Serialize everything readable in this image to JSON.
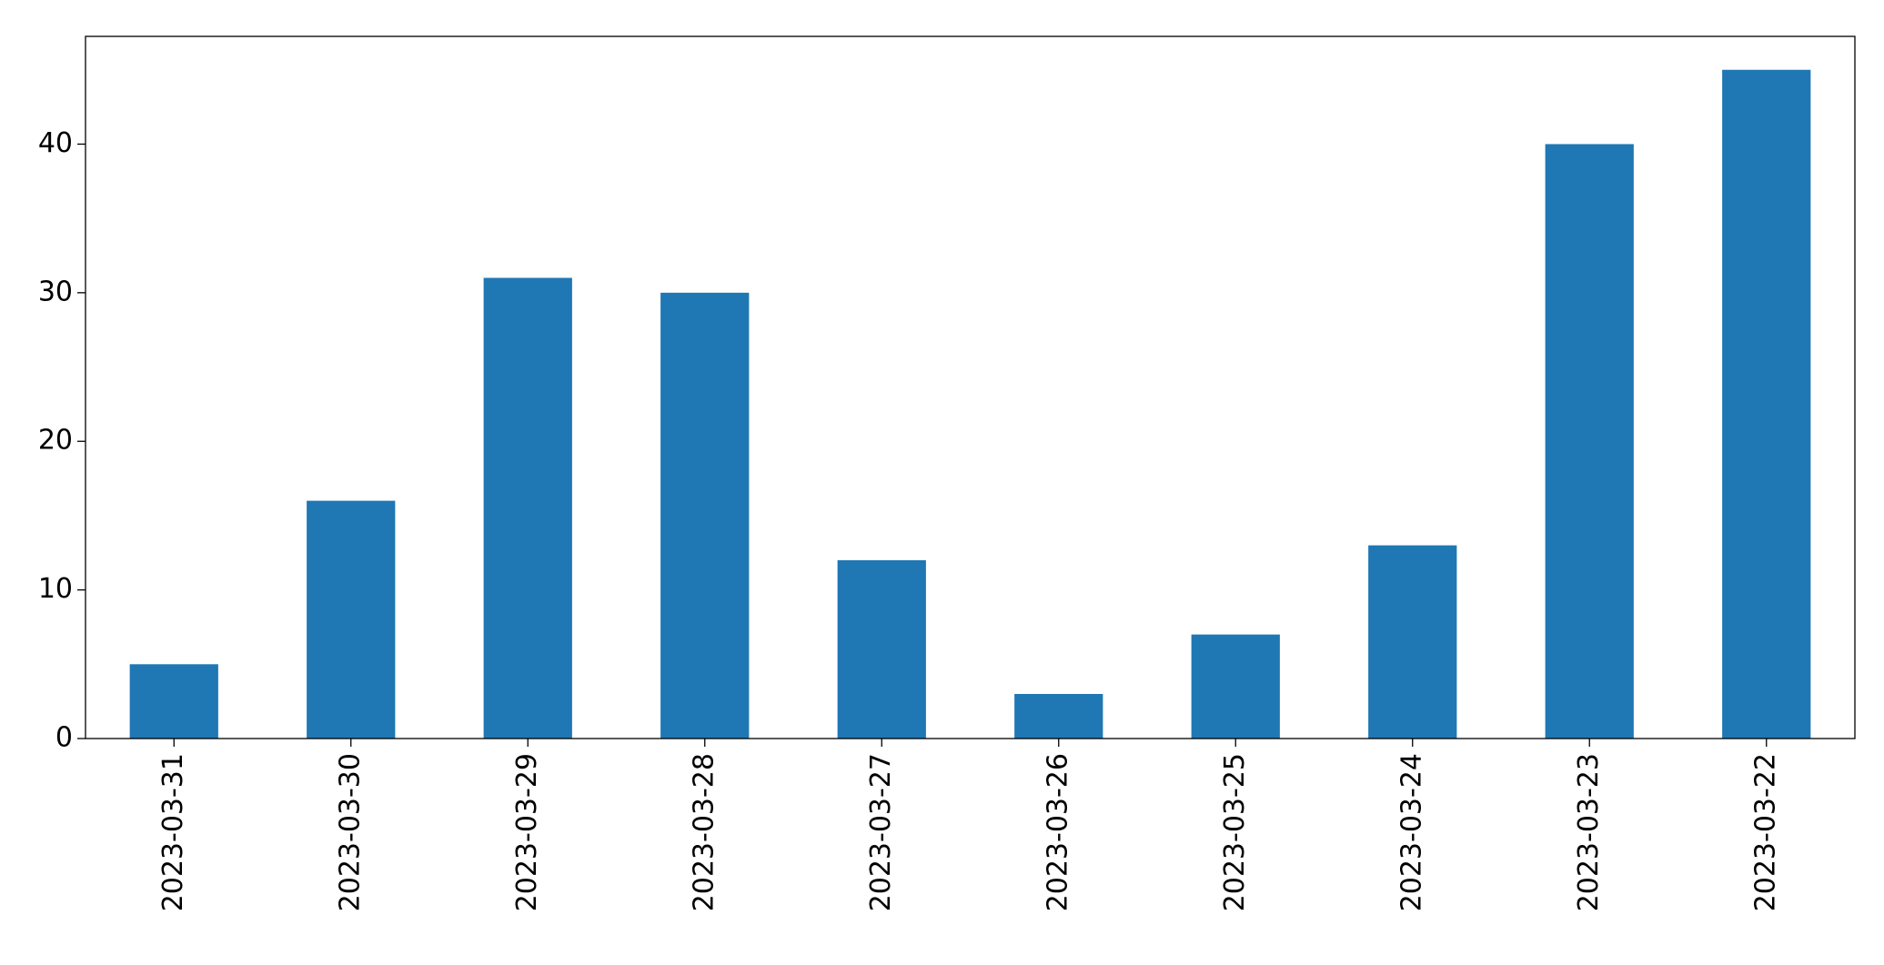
{
  "chart_data": {
    "type": "bar",
    "categories": [
      "2023-03-31",
      "2023-03-30",
      "2023-03-29",
      "2023-03-28",
      "2023-03-27",
      "2023-03-26",
      "2023-03-25",
      "2023-03-24",
      "2023-03-23",
      "2023-03-22"
    ],
    "values": [
      5,
      16,
      31,
      30,
      12,
      3,
      7,
      13,
      40,
      45
    ],
    "color": "#1f77b4",
    "ylim": [
      0,
      47.25
    ],
    "yticks": [
      0,
      10,
      20,
      30,
      40
    ],
    "grid": false
  }
}
